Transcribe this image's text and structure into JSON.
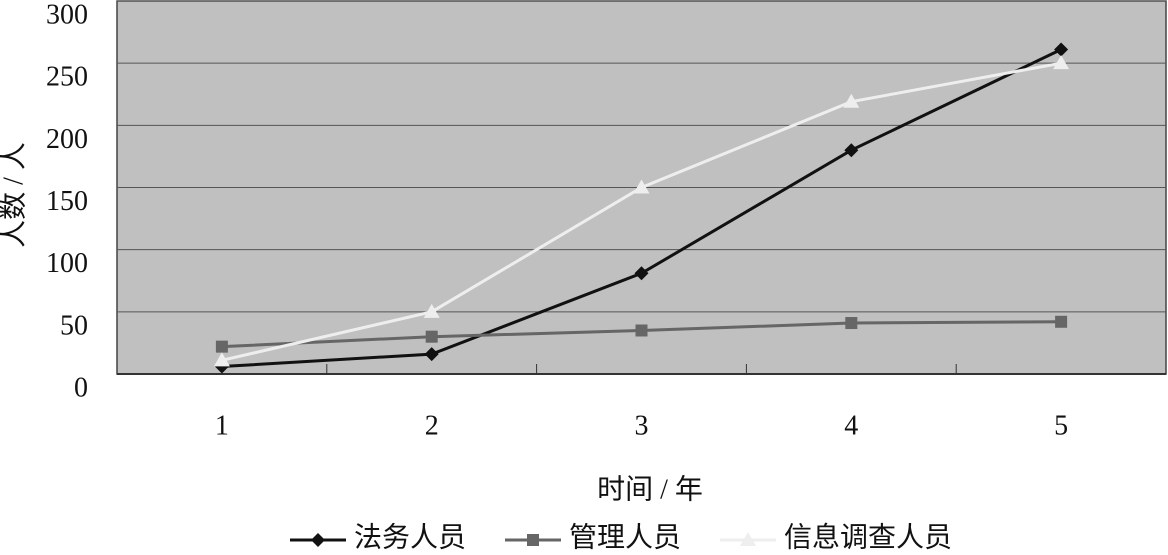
{
  "chart_data": {
    "type": "line",
    "x_label": "时间 / 年",
    "y_label": "人数 / 人",
    "categories": [
      "1",
      "2",
      "3",
      "4",
      "5"
    ],
    "series": [
      {
        "name": "法务人员",
        "color": "#111111",
        "marker": "diamond",
        "values": [
          6,
          16,
          81,
          180,
          261
        ]
      },
      {
        "name": "管理人员",
        "color": "#666666",
        "marker": "square",
        "values": [
          22,
          30,
          35,
          41,
          42
        ]
      },
      {
        "name": "信息调查人员",
        "color": "#eeeeee",
        "marker": "triangle",
        "values": [
          11,
          50,
          150,
          219,
          250
        ]
      }
    ],
    "ylim": [
      0,
      300
    ],
    "yticks": [
      0,
      50,
      100,
      150,
      200,
      250,
      300
    ],
    "grid": true,
    "background": "#c0c0c0",
    "legend": "bottom"
  }
}
